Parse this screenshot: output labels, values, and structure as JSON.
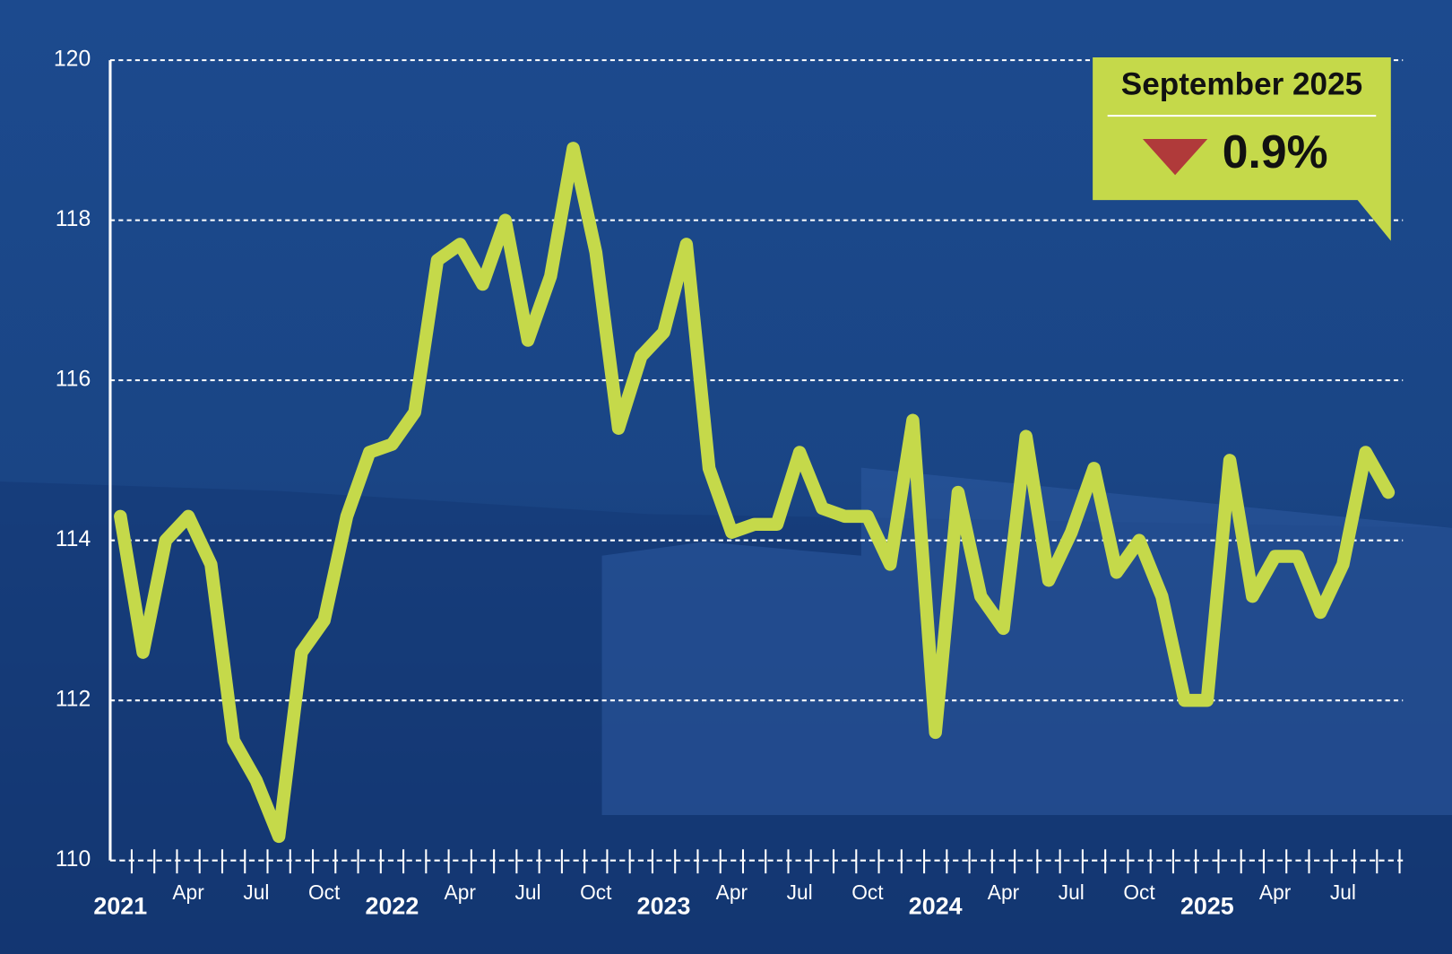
{
  "chart_data": {
    "type": "line",
    "categories": [
      "2021",
      null,
      null,
      "Apr",
      null,
      null,
      "Jul",
      null,
      null,
      "Oct",
      null,
      null,
      "2022",
      null,
      null,
      "Apr",
      null,
      null,
      "Jul",
      null,
      null,
      "Oct",
      null,
      null,
      "2023",
      null,
      null,
      "Apr",
      null,
      null,
      "Jul",
      null,
      null,
      "Oct",
      null,
      null,
      "2024",
      null,
      null,
      "Apr",
      null,
      null,
      "Jul",
      null,
      null,
      "Oct",
      null,
      null,
      "2025",
      null,
      null,
      "Apr",
      null,
      null,
      "Jul",
      null,
      null
    ],
    "series": [
      {
        "color": "#c5d94a",
        "values": [
          114.3,
          112.6,
          114.0,
          114.3,
          113.7,
          111.5,
          111.0,
          110.3,
          112.6,
          113.0,
          114.3,
          115.1,
          115.2,
          115.6,
          117.5,
          117.7,
          117.2,
          118.0,
          116.5,
          117.3,
          118.9,
          117.6,
          115.4,
          116.3,
          116.6,
          117.7,
          114.9,
          114.1,
          114.2,
          114.2,
          115.1,
          114.4,
          114.3,
          114.3,
          113.7,
          115.5,
          111.6,
          114.6,
          113.3,
          112.9,
          115.3,
          113.5,
          114.1,
          114.9,
          113.6,
          114.0,
          113.3,
          112.0,
          112.0,
          115.0,
          113.3,
          113.8,
          113.8,
          113.1,
          113.7,
          115.1,
          114.6
        ]
      }
    ],
    "ylim": [
      110,
      120
    ],
    "yticks": [
      110,
      112,
      114,
      116,
      118,
      120
    ],
    "grid": true,
    "callout": {
      "title": "September 2025",
      "change": "0.9%"
    }
  }
}
